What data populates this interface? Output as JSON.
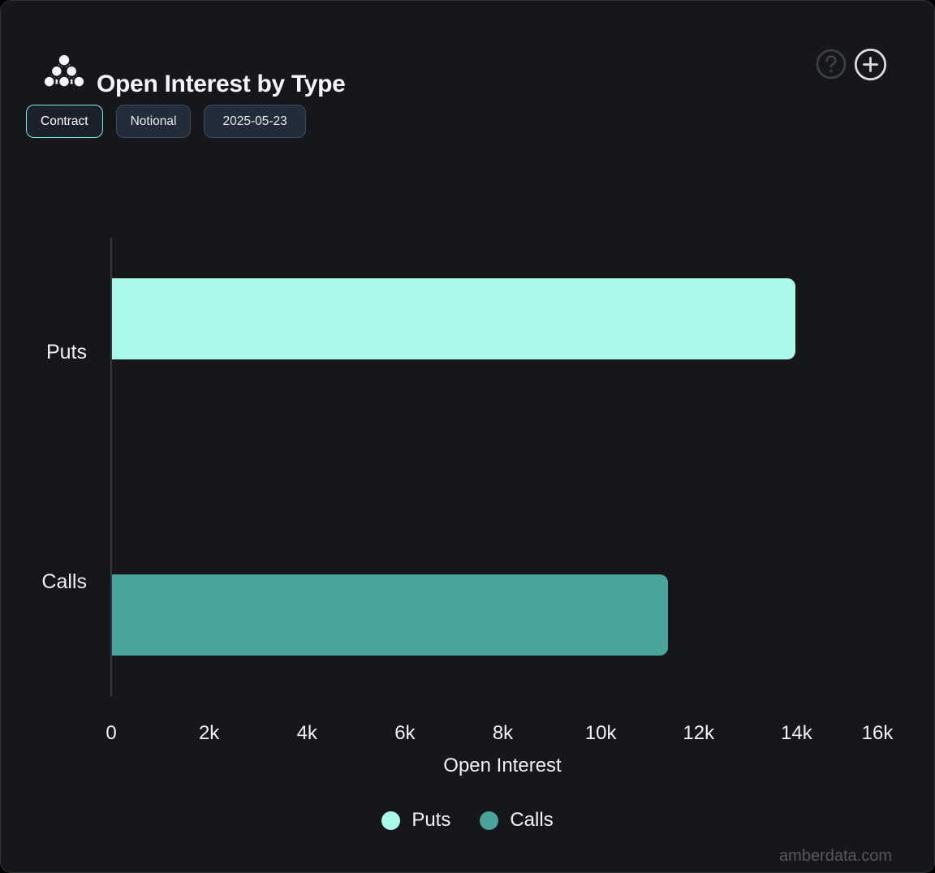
{
  "header": {
    "title": "Open Interest by Type",
    "help_icon": "question-mark-circle",
    "add_icon": "plus-circle"
  },
  "toolbar": {
    "buttons": [
      {
        "label": "Contract",
        "active": true
      },
      {
        "label": "Notional",
        "active": false
      },
      {
        "label": "2025-05-23",
        "active": false
      }
    ]
  },
  "chart_data": {
    "type": "bar",
    "orientation": "horizontal",
    "title": "Open Interest by Type",
    "categories": [
      "Puts",
      "Calls"
    ],
    "series": [
      {
        "name": "Puts",
        "color": "#aafaec",
        "values": [
          13970,
          0
        ]
      },
      {
        "name": "Calls",
        "color": "#4aa49b",
        "values": [
          0,
          11370
        ]
      }
    ],
    "xlabel": "Open Interest",
    "ylabel": "",
    "xlim": [
      0,
      16000
    ],
    "xticks": [
      0,
      2000,
      4000,
      6000,
      8000,
      10000,
      12000,
      14000,
      16000
    ],
    "xtick_labels": [
      "0",
      "2k",
      "4k",
      "6k",
      "8k",
      "10k",
      "12k",
      "14k",
      "16k"
    ],
    "grid": false,
    "legend_position": "bottom",
    "legend": [
      {
        "label": "Puts",
        "color": "#aafaec"
      },
      {
        "label": "Calls",
        "color": "#4aa49b"
      }
    ]
  },
  "watermark": "amberdata.com",
  "colors": {
    "background": "#16171b",
    "accent": "#79ead4",
    "puts": "#aafaec",
    "calls": "#4aa49b",
    "axis_line": "#36393f",
    "text": "#f0f2f4",
    "muted": "#55585d"
  }
}
